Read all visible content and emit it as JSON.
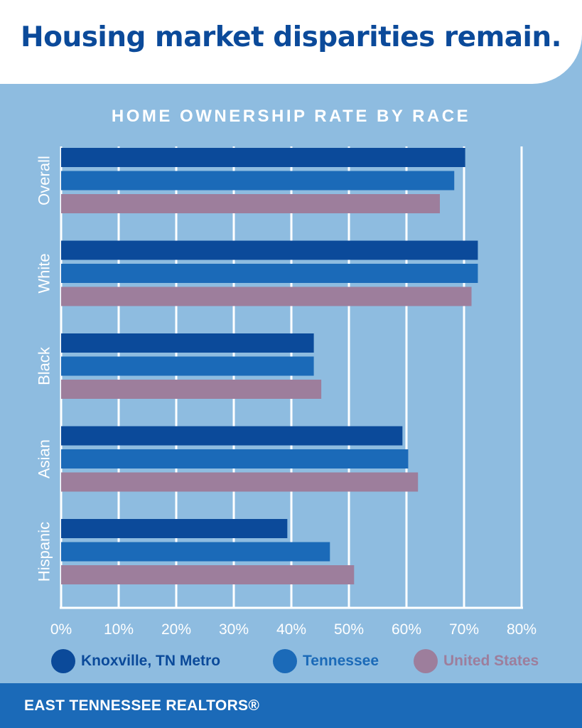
{
  "header": {
    "title": "Housing market disparities remain."
  },
  "chart_data": {
    "type": "bar",
    "orientation": "horizontal",
    "title": "HOME OWNERSHIP RATE BY RACE",
    "xlabel": "",
    "ylabel": "",
    "xlim": [
      0,
      80
    ],
    "x_ticks": [
      "0%",
      "10%",
      "20%",
      "30%",
      "40%",
      "50%",
      "60%",
      "70%",
      "80%"
    ],
    "grid": true,
    "legend_position": "bottom",
    "categories": [
      "Overall",
      "White",
      "Black",
      "Asian",
      "Hispanic"
    ],
    "series": [
      {
        "name": "Knoxville, TN Metro",
        "color": "#0b4a9a",
        "values": [
          70.2,
          72.4,
          43.9,
          59.3,
          39.3
        ]
      },
      {
        "name": "Tennessee",
        "color": "#1b6ab8",
        "values": [
          68.3,
          72.4,
          43.9,
          60.3,
          46.7
        ]
      },
      {
        "name": "United States",
        "color": "#9d7e9c",
        "values": [
          65.8,
          71.3,
          45.2,
          62.0,
          50.9
        ]
      }
    ]
  },
  "footer": {
    "text": "EAST TENNESSEE REALTORS®"
  }
}
